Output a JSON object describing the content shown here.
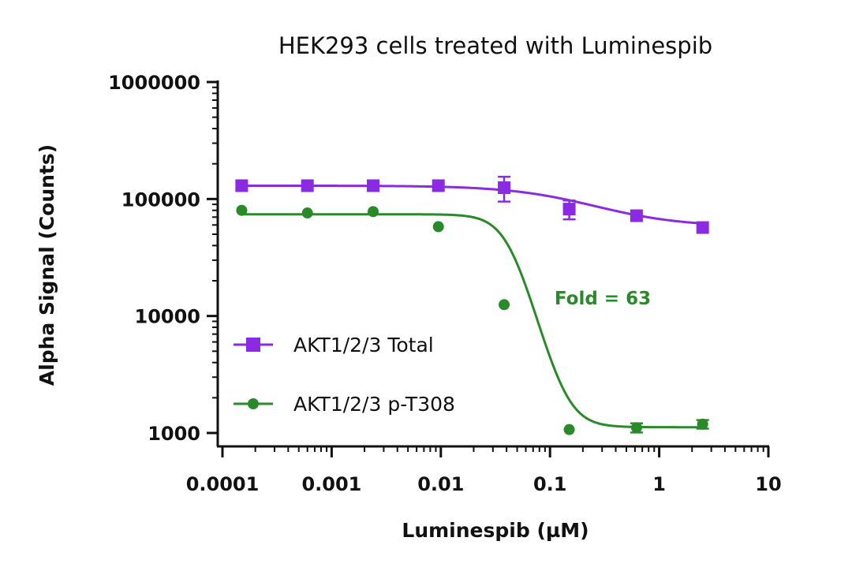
{
  "chart_data": {
    "type": "scatter",
    "title": "HEK293 cells treated with Luminespib",
    "xlabel": "Luminespib (µM)",
    "ylabel": "Alpha Signal (Counts)",
    "xscale": "log",
    "yscale": "log",
    "xlim": [
      0.0001,
      10
    ],
    "ylim": [
      1000,
      1000000
    ],
    "x_ticks": [
      "0.0001",
      "0.001",
      "0.01",
      "0.1",
      "1",
      "10"
    ],
    "y_ticks": [
      "1000",
      "10000",
      "100000",
      "1000000"
    ],
    "legend_position": "lower-left",
    "series": [
      {
        "name": "AKT1/2/3 Total",
        "color": "#8a2be2",
        "marker": "square",
        "x": [
          0.00015,
          0.0006,
          0.0024,
          0.0095,
          0.038,
          0.15,
          0.62,
          2.5
        ],
        "y": [
          130000,
          130000,
          130000,
          130000,
          125000,
          82000,
          72000,
          57000
        ],
        "y_err": [
          0,
          0,
          0,
          0,
          30000,
          15000,
          0,
          0
        ],
        "fit": {
          "top": 130000,
          "bottom": 58000,
          "ec50": 0.18,
          "hill": 1.1
        }
      },
      {
        "name": "AKT1/2/3 p-T308",
        "color": "#2a8a2a",
        "marker": "circle",
        "x": [
          0.00015,
          0.0006,
          0.0024,
          0.0095,
          0.038,
          0.15,
          0.62,
          2.5
        ],
        "y": [
          80000,
          76000,
          78000,
          58000,
          12500,
          1070,
          1110,
          1190
        ],
        "y_err": [
          0,
          0,
          0,
          0,
          0,
          0,
          100,
          100
        ],
        "fit": {
          "top": 74000,
          "bottom": 1120,
          "ec50": 0.043,
          "hill": 3.6
        }
      }
    ],
    "annotations": [
      {
        "text": "Fold = 63",
        "color": "#2a8a2a"
      }
    ]
  }
}
